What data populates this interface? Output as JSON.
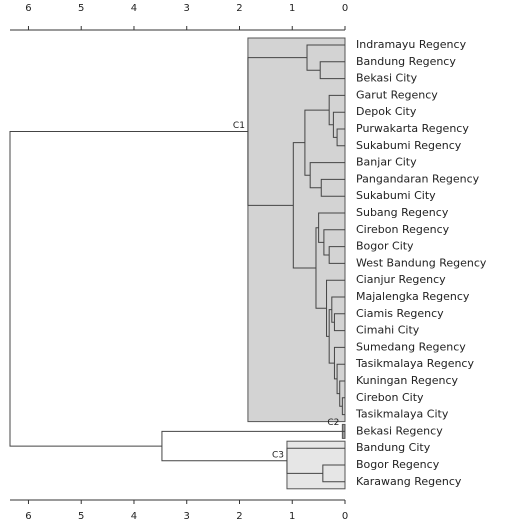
{
  "chart_data": {
    "type": "dendrogram",
    "leaves": [
      "Indramayu Regency",
      "Bandung Regency",
      "Bekasi City",
      "Garut Regency",
      "Depok City",
      "Purwakarta Regency",
      "Sukabumi Regency",
      "Banjar City",
      "Pangandaran Regency",
      "Sukabumi City",
      "Subang Regency",
      "Cirebon Regency",
      "Bogor City",
      "West Bandung Regency",
      "Cianjur Regency",
      "Majalengka Regency",
      "Ciamis Regency",
      "Cimahi City",
      "Sumedang Regency",
      "Tasikmalaya Regency",
      "Kuningan Regency",
      "Cirebon City",
      "Tasikmalaya City",
      "Bekasi Regency",
      "Bandung City",
      "Bogor Regency",
      "Karawang Regency"
    ],
    "merges": [
      [
        1,
        2,
        0.47
      ],
      [
        0,
        27,
        0.72
      ],
      [
        5,
        6,
        0.15
      ],
      [
        4,
        29,
        0.22
      ],
      [
        3,
        30,
        0.3
      ],
      [
        8,
        9,
        0.45
      ],
      [
        7,
        32,
        0.66
      ],
      [
        31,
        33,
        0.76
      ],
      [
        21,
        22,
        0.05
      ],
      [
        20,
        35,
        0.1
      ],
      [
        19,
        36,
        0.15
      ],
      [
        18,
        37,
        0.2
      ],
      [
        16,
        17,
        0.2
      ],
      [
        15,
        39,
        0.25
      ],
      [
        40,
        38,
        0.3
      ],
      [
        14,
        41,
        0.35
      ],
      [
        12,
        13,
        0.3
      ],
      [
        11,
        43,
        0.4
      ],
      [
        10,
        44,
        0.5
      ],
      [
        45,
        42,
        0.55
      ],
      [
        34,
        46,
        0.98
      ],
      [
        28,
        47,
        1.84
      ],
      [
        25,
        26,
        0.42
      ],
      [
        24,
        49,
        1.1
      ],
      [
        23,
        50,
        3.47
      ],
      [
        48,
        51,
        6.35
      ]
    ],
    "clusters": [
      {
        "label": "C1",
        "leaves": [
          0,
          22
        ],
        "height": 1.84,
        "merge": 21
      },
      {
        "label": "C2",
        "leaves": [
          23,
          23
        ],
        "height": 0.05
      },
      {
        "label": "C3",
        "leaves": [
          24,
          26
        ],
        "height": 1.1,
        "merge": 23
      }
    ],
    "cluster_colors": [
      "#d3d3d3",
      "#999999",
      "#e6e6e6"
    ],
    "xlim": [
      6.35,
      0
    ],
    "xticks": [
      6,
      5,
      4,
      3,
      2,
      1,
      0
    ]
  }
}
